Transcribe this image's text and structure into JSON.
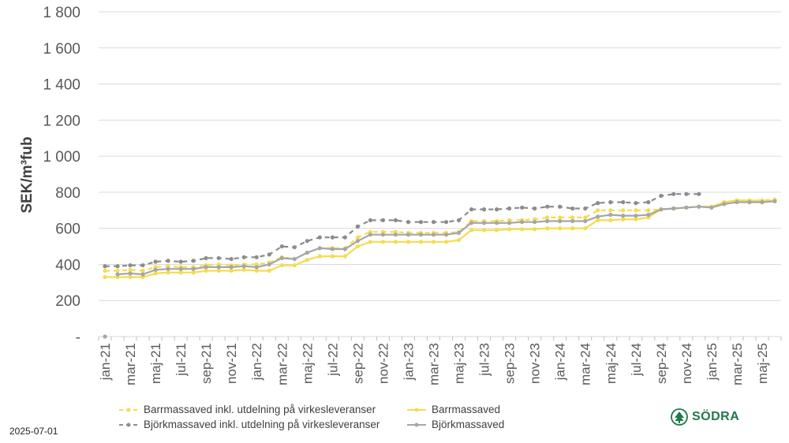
{
  "chart_data": {
    "type": "line",
    "ylabel": "SEK/m³fub",
    "ylim": [
      0,
      1800
    ],
    "yticks": [
      0,
      200,
      400,
      600,
      800,
      1000,
      1200,
      1400,
      1600,
      1800
    ],
    "ytick_labels": [
      "-",
      "200",
      "400",
      "600",
      "800",
      "1 000",
      "1 200",
      "1 400",
      "1 600",
      "1 800"
    ],
    "grid": true,
    "legend_position": "bottom",
    "categories": [
      "jan-21",
      "feb-21",
      "mar-21",
      "apr-21",
      "maj-21",
      "jun-21",
      "jul-21",
      "aug-21",
      "sep-21",
      "okt-21",
      "nov-21",
      "dec-21",
      "jan-22",
      "feb-22",
      "mar-22",
      "apr-22",
      "maj-22",
      "jun-22",
      "jul-22",
      "aug-22",
      "sep-22",
      "okt-22",
      "nov-22",
      "dec-22",
      "jan-23",
      "feb-23",
      "mar-23",
      "apr-23",
      "maj-23",
      "jun-23",
      "jul-23",
      "aug-23",
      "sep-23",
      "okt-23",
      "nov-23",
      "dec-23",
      "jan-24",
      "feb-24",
      "mar-24",
      "apr-24",
      "maj-24",
      "jun-24",
      "jul-24",
      "aug-24",
      "sep-24",
      "okt-24",
      "nov-24",
      "dec-24",
      "jan-25",
      "feb-25",
      "mar-25",
      "apr-25",
      "maj-25",
      "jun-25"
    ],
    "tick_labels": [
      "jan-21",
      "mar-21",
      "maj-21",
      "jul-21",
      "sep-21",
      "nov-21",
      "jan-22",
      "mar-22",
      "maj-22",
      "jul-22",
      "sep-22",
      "nov-22",
      "jan-23",
      "mar-23",
      "maj-23",
      "jul-23",
      "sep-23",
      "nov-23",
      "jan-24",
      "mar-24",
      "maj-24",
      "jul-24",
      "sep-24",
      "nov-24",
      "jan-25",
      "mar-25",
      "maj-25"
    ],
    "series": [
      {
        "name": "Barrmassaved inkl. utdelning på virkesleveranser",
        "color": "#f5dc4f",
        "dashed": true,
        "values": [
          365,
          365,
          370,
          365,
          385,
          390,
          385,
          385,
          395,
          400,
          395,
          400,
          400,
          410,
          440,
          430,
          465,
          490,
          490,
          490,
          550,
          580,
          580,
          580,
          575,
          575,
          575,
          575,
          580,
          640,
          640,
          640,
          645,
          645,
          650,
          660,
          660,
          660,
          660,
          700,
          700,
          700,
          700,
          700,
          705,
          710,
          715,
          720,
          720,
          745,
          755,
          755,
          755,
          760
        ]
      },
      {
        "name": "Barrmassaved",
        "color": "#f5dc4f",
        "dashed": false,
        "values": [
          330,
          330,
          330,
          330,
          350,
          355,
          355,
          355,
          365,
          365,
          365,
          370,
          365,
          365,
          395,
          395,
          425,
          445,
          445,
          445,
          500,
          525,
          525,
          525,
          525,
          525,
          525,
          525,
          535,
          590,
          590,
          590,
          595,
          595,
          595,
          600,
          600,
          600,
          600,
          645,
          645,
          650,
          650,
          660,
          705,
          710,
          715,
          720,
          720,
          745,
          755,
          755,
          750,
          755
        ]
      },
      {
        "name": "Björkmassaved inkl. utdelning på virkesleveranser",
        "color": "#8c8c8c",
        "dashed": true,
        "values": [
          390,
          390,
          395,
          395,
          415,
          420,
          415,
          420,
          435,
          435,
          430,
          440,
          440,
          455,
          500,
          495,
          530,
          550,
          550,
          550,
          610,
          645,
          645,
          645,
          635,
          635,
          635,
          635,
          645,
          705,
          705,
          705,
          710,
          715,
          710,
          720,
          720,
          710,
          710,
          740,
          745,
          745,
          740,
          745,
          780,
          790,
          790,
          790,
          null,
          null,
          null,
          null,
          null,
          null
        ]
      },
      {
        "name": "Björkmassaved",
        "color": "#a6a6a6",
        "dashed": false,
        "values": [
          0,
          345,
          350,
          345,
          370,
          375,
          375,
          375,
          385,
          385,
          385,
          390,
          385,
          400,
          435,
          430,
          465,
          490,
          485,
          485,
          530,
          565,
          565,
          565,
          565,
          565,
          565,
          565,
          575,
          630,
          630,
          630,
          630,
          635,
          635,
          640,
          640,
          640,
          640,
          665,
          675,
          670,
          670,
          675,
          705,
          710,
          715,
          720,
          715,
          735,
          745,
          745,
          745,
          750
        ]
      }
    ]
  },
  "footer": {
    "date": "2025-07-01",
    "logo_text": "SÖDRA"
  },
  "icons": {
    "logo": "sodra-tree-icon"
  }
}
